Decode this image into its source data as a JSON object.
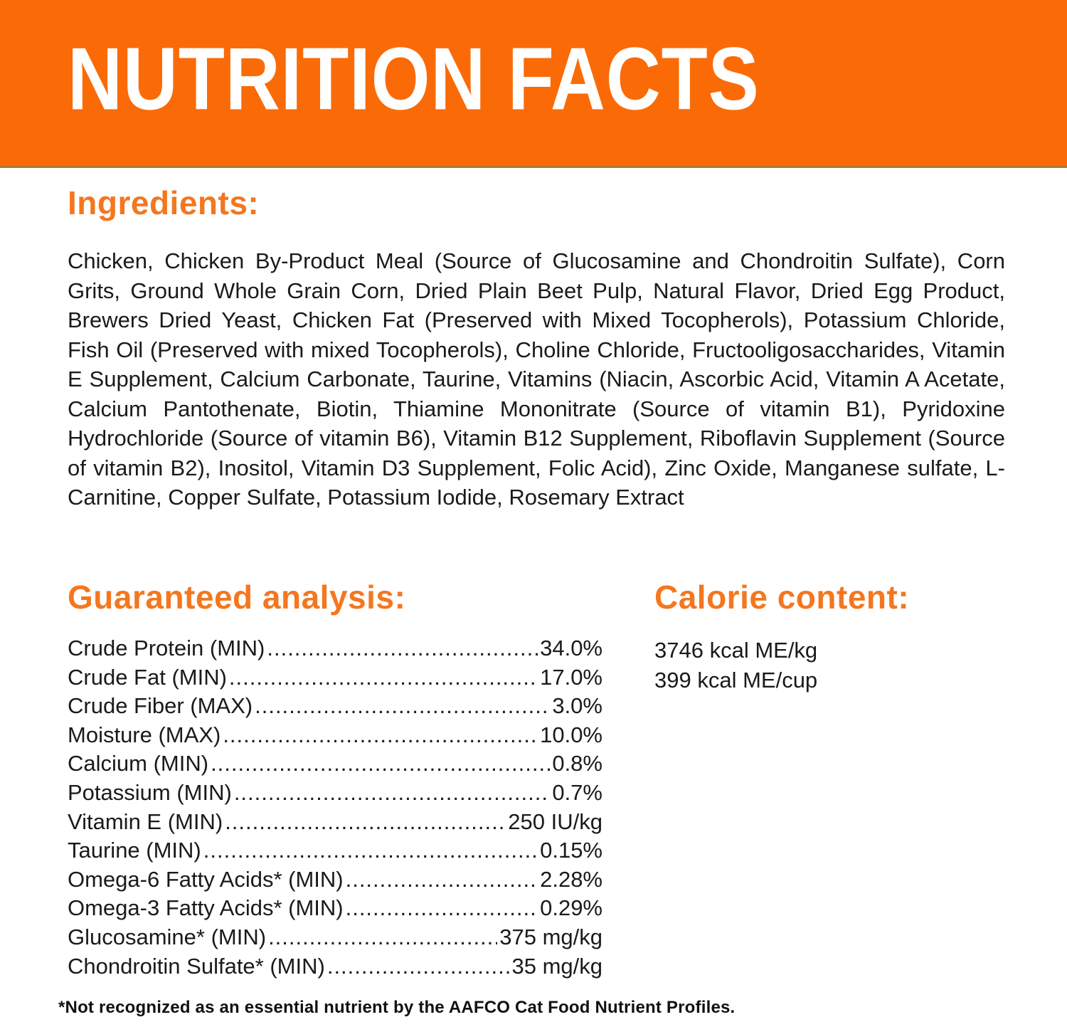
{
  "colors": {
    "banner_bg": "#FA6B08",
    "banner_text": "#FFFFFF",
    "heading_orange": "#F4771F",
    "body_text": "#1A1A1A"
  },
  "banner": {
    "title": "NUTRITION FACTS"
  },
  "ingredients": {
    "heading": "Ingredients:",
    "text": "Chicken, Chicken By-Product Meal (Source of Glucosamine and Chondroitin Sulfate), Corn Grits, Ground Whole Grain Corn, Dried Plain Beet Pulp, Natural Flavor, Dried Egg Product, Brewers Dried Yeast, Chicken Fat (Preserved with Mixed Tocopherols), Potassium Chloride, Fish Oil (Preserved with mixed Tocopherols), Choline Chloride, Fructooligosaccharides, Vitamin E Supplement, Calcium Carbonate, Taurine, Vitamins (Niacin, Ascorbic Acid, Vitamin A Acetate, Calcium Pantothenate, Biotin, Thiamine Mononitrate (Source of vitamin B1), Pyridoxine Hydrochloride (Source of vitamin B6), Vitamin B12 Supplement, Riboflavin Supplement (Source of vitamin B2), Inositol, Vitamin D3 Supplement, Folic Acid), Zinc Oxide, Manganese sulfate, L-Carnitine, Copper Sulfate, Potassium Iodide, Rosemary Extract"
  },
  "guaranteed_analysis": {
    "heading": "Guaranteed analysis:",
    "rows": [
      {
        "label": "Crude Protein (MIN)",
        "value": "34.0%"
      },
      {
        "label": "Crude Fat (MIN)",
        "value": "17.0%"
      },
      {
        "label": "Crude Fiber (MAX)",
        "value": "3.0%"
      },
      {
        "label": "Moisture (MAX)",
        "value": "10.0%"
      },
      {
        "label": "Calcium (MIN)",
        "value": "0.8%"
      },
      {
        "label": "Potassium (MIN)",
        "value": "0.7%"
      },
      {
        "label": "Vitamin E (MIN)",
        "value": "250 IU/kg"
      },
      {
        "label": "Taurine (MIN)",
        "value": "0.15%"
      },
      {
        "label": "Omega-6 Fatty Acids* (MIN)",
        "value": "2.28%"
      },
      {
        "label": "Omega-3 Fatty Acids* (MIN)",
        "value": "0.29%"
      },
      {
        "label": "Glucosamine* (MIN)",
        "value": "375 mg/kg"
      },
      {
        "label": "Chondroitin Sulfate* (MIN)",
        "value": "35 mg/kg"
      }
    ]
  },
  "calorie_content": {
    "heading": "Calorie content:",
    "lines": [
      "3746 kcal ME/kg",
      "399 kcal ME/cup"
    ]
  },
  "footnote": "*Not recognized as an essential nutrient by the AAFCO Cat Food Nutrient Profiles."
}
